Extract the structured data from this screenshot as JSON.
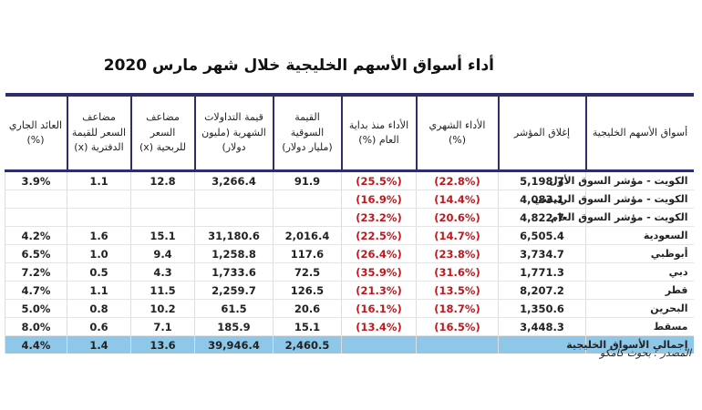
{
  "title": "أداء أسواق الأسهم الخليجية خلال شهر مارس 2020",
  "table": {
    "headers": [
      "أسواق الأسهم الخليجية",
      "إغلاق المؤشر",
      "الأداء الشهري (%)",
      "الأداء منذ بداية العام (%)",
      "القيمة السوقية (مليار دولار)",
      "قيمة التداولات الشهرية (مليون دولار)",
      "مضاعف السعر للربحية (x)",
      "مضاعف السعر للقيمة الدفترية (x)",
      "العائد الجاري (%)"
    ],
    "rows": [
      [
        "الكويت - مؤشر السوق الأول",
        "5,198.7",
        "(22.8%)",
        "(25.5%)",
        "91.9",
        "3,266.4",
        "12.8",
        "1.1",
        "3.9%"
      ],
      [
        "الكويت - مؤشر السوق الرئيسي",
        "4,083.1",
        "(14.4%)",
        "(16.9%)",
        null,
        null,
        null,
        null,
        null
      ],
      [
        "الكويت - مؤشر السوق العام",
        "4,822.7",
        "(20.6%)",
        "(23.2%)",
        null,
        null,
        null,
        null,
        null
      ],
      [
        "السعودية",
        "6,505.4",
        "(14.7%)",
        "(22.5%)",
        "2,016.4",
        "31,180.6",
        "15.1",
        "1.6",
        "4.2%"
      ],
      [
        "أبوظبي",
        "3,734.7",
        "(23.8%)",
        "(26.4%)",
        "117.6",
        "1,258.8",
        "9.4",
        "1.0",
        "6.5%"
      ],
      [
        "دبي",
        "1,771.3",
        "(31.6%)",
        "(35.9%)",
        "72.5",
        "1,733.6",
        "4.3",
        "0.5",
        "7.2%"
      ],
      [
        "قطر",
        "8,207.2",
        "(13.5%)",
        "(21.3%)",
        "126.5",
        "2,259.7",
        "11.5",
        "1.1",
        "4.7%"
      ],
      [
        "البحرين",
        "1,350.6",
        "(18.7%)",
        "(16.1%)",
        "20.6",
        "61.5",
        "10.2",
        "0.8",
        "5.0%"
      ],
      [
        "مسقط",
        "3,448.3",
        "(16.5%)",
        "(13.4%)",
        "15.1",
        "185.9",
        "7.1",
        "0.6",
        "8.0%"
      ]
    ],
    "total": [
      "إجمالي الأسواق الخليجية",
      null,
      null,
      null,
      "2,460.5",
      "39,946.4",
      "13.6",
      "1.4",
      "4.4%"
    ]
  },
  "source": "المصدر : بحوث كامكو"
}
